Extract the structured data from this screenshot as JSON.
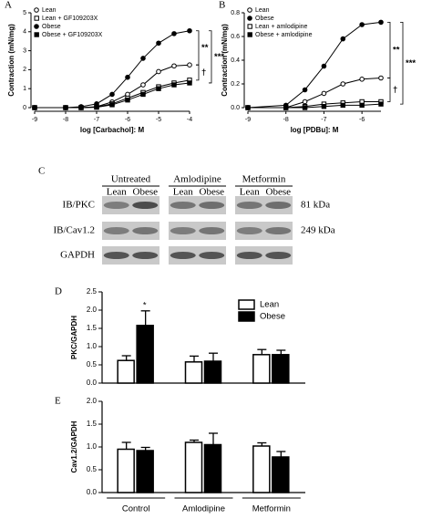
{
  "chart_data": [
    {
      "type": "line",
      "label": "A",
      "xlabel": "log [Carbachol]: M",
      "ylabel": "Contraction (mN/mg)",
      "xlim": [
        -9,
        -4
      ],
      "xticks": [
        -9,
        -8,
        -7,
        -6,
        -5,
        -4
      ],
      "ylim": [
        0,
        5
      ],
      "yticks": [
        0,
        1,
        2,
        3,
        4,
        5
      ],
      "x": [
        -9,
        -8,
        -7.5,
        -7,
        -6.5,
        -6,
        -5.5,
        -5,
        -4.5,
        -4
      ],
      "series": [
        {
          "name": "Lean",
          "color": "#000",
          "marker": "circle-open",
          "values": [
            0,
            0,
            0,
            0.05,
            0.3,
            0.7,
            1.2,
            1.9,
            2.2,
            2.25
          ]
        },
        {
          "name": "Lean + GF109203X",
          "color": "#000",
          "marker": "square-open",
          "values": [
            0,
            0,
            0,
            0.03,
            0.2,
            0.5,
            0.8,
            1.1,
            1.3,
            1.45
          ]
        },
        {
          "name": "Obese",
          "color": "#000",
          "marker": "circle",
          "values": [
            0,
            0,
            0.05,
            0.2,
            0.7,
            1.6,
            2.6,
            3.4,
            3.9,
            4.05
          ]
        },
        {
          "name": "Obese + GF109203X",
          "color": "#000",
          "marker": "square",
          "values": [
            0,
            0,
            0,
            0.02,
            0.15,
            0.4,
            0.7,
            1.0,
            1.2,
            1.3
          ]
        }
      ],
      "annotations": [
        "**",
        "†",
        "***"
      ]
    },
    {
      "type": "line",
      "label": "B",
      "xlabel": "log [PDBu]: M",
      "ylabel": "Contraction (mN/mg)",
      "xlim": [
        -9,
        -5.5
      ],
      "xticks": [
        -9,
        -8,
        -7,
        -6
      ],
      "ylim": [
        0,
        0.8
      ],
      "yticks": [
        {
          "value": 0,
          "label": "0.0"
        },
        0.2,
        0.4,
        0.6,
        0.8
      ],
      "x": [
        -9,
        -8,
        -7.5,
        -7,
        -6.5,
        -6,
        -5.5
      ],
      "series": [
        {
          "name": "Lean",
          "color": "#000",
          "marker": "circle-open",
          "values": [
            0,
            0,
            0.05,
            0.12,
            0.2,
            0.24,
            0.25
          ]
        },
        {
          "name": "Obese",
          "color": "#000",
          "marker": "circle",
          "values": [
            0,
            0.02,
            0.15,
            0.35,
            0.58,
            0.7,
            0.72
          ]
        },
        {
          "name": "Lean + amlodipine",
          "color": "#000",
          "marker": "square-open",
          "values": [
            0,
            0,
            0.01,
            0.03,
            0.04,
            0.05,
            0.05
          ]
        },
        {
          "name": "Obese + amlodipine",
          "color": "#000",
          "marker": "square",
          "values": [
            0,
            0,
            0,
            0.01,
            0.02,
            0.02,
            0.03
          ]
        }
      ],
      "annotations": [
        "**",
        "†",
        "***"
      ]
    },
    {
      "type": "bar",
      "label": "D",
      "ylabel": "PKC/GAPDH",
      "ylim": [
        0,
        2.5
      ],
      "yticks": [
        {
          "value": 0,
          "label": "0.0"
        },
        0.5,
        {
          "value": 1,
          "label": "1.0"
        },
        1.5,
        {
          "value": 2,
          "label": "2.0"
        },
        2.5
      ],
      "categories": [
        null,
        null,
        null
      ],
      "series": [
        {
          "name": "Lean",
          "color": "#fff",
          "values": [
            0.62,
            0.58,
            0.78
          ],
          "errors": [
            0.13,
            0.16,
            0.14
          ]
        },
        {
          "name": "Obese",
          "color": "#000",
          "values": [
            1.58,
            0.6,
            0.78
          ],
          "errors": [
            0.4,
            0.22,
            0.12
          ]
        }
      ],
      "annotations": [
        "*"
      ]
    },
    {
      "type": "bar",
      "label": "E",
      "ylabel": "Cav1.2/GAPDH",
      "ylim": [
        0,
        2
      ],
      "yticks": [
        {
          "value": 0,
          "label": "0.0"
        },
        0.5,
        {
          "value": 1,
          "label": "1.0"
        },
        1.5,
        {
          "value": 2,
          "label": "2.0"
        }
      ],
      "categories": [
        "Control",
        "Amlodipine",
        "Metformin"
      ],
      "series": [
        {
          "color": "#fff",
          "values": [
            0.95,
            1.1,
            1.02
          ],
          "errors": [
            0.15,
            0.05,
            0.07
          ]
        },
        {
          "color": "#000",
          "values": [
            0.92,
            1.05,
            0.78
          ],
          "errors": [
            0.07,
            0.25,
            0.12
          ]
        }
      ]
    }
  ],
  "blot": {
    "label": "C",
    "groups": [
      {
        "title": "Untreated",
        "lanes": [
          "Lean",
          "Obese"
        ]
      },
      {
        "title": "Amlodipine",
        "lanes": [
          "Lean",
          "Obese"
        ]
      },
      {
        "title": "Metformin",
        "lanes": [
          "Lean",
          "Obese"
        ]
      }
    ],
    "rows": [
      {
        "label": "IB/PKC",
        "size": "81 kDa"
      },
      {
        "label": "IB/Cav1.2",
        "size": "249 kDa"
      },
      {
        "label": "GAPDH"
      }
    ]
  }
}
